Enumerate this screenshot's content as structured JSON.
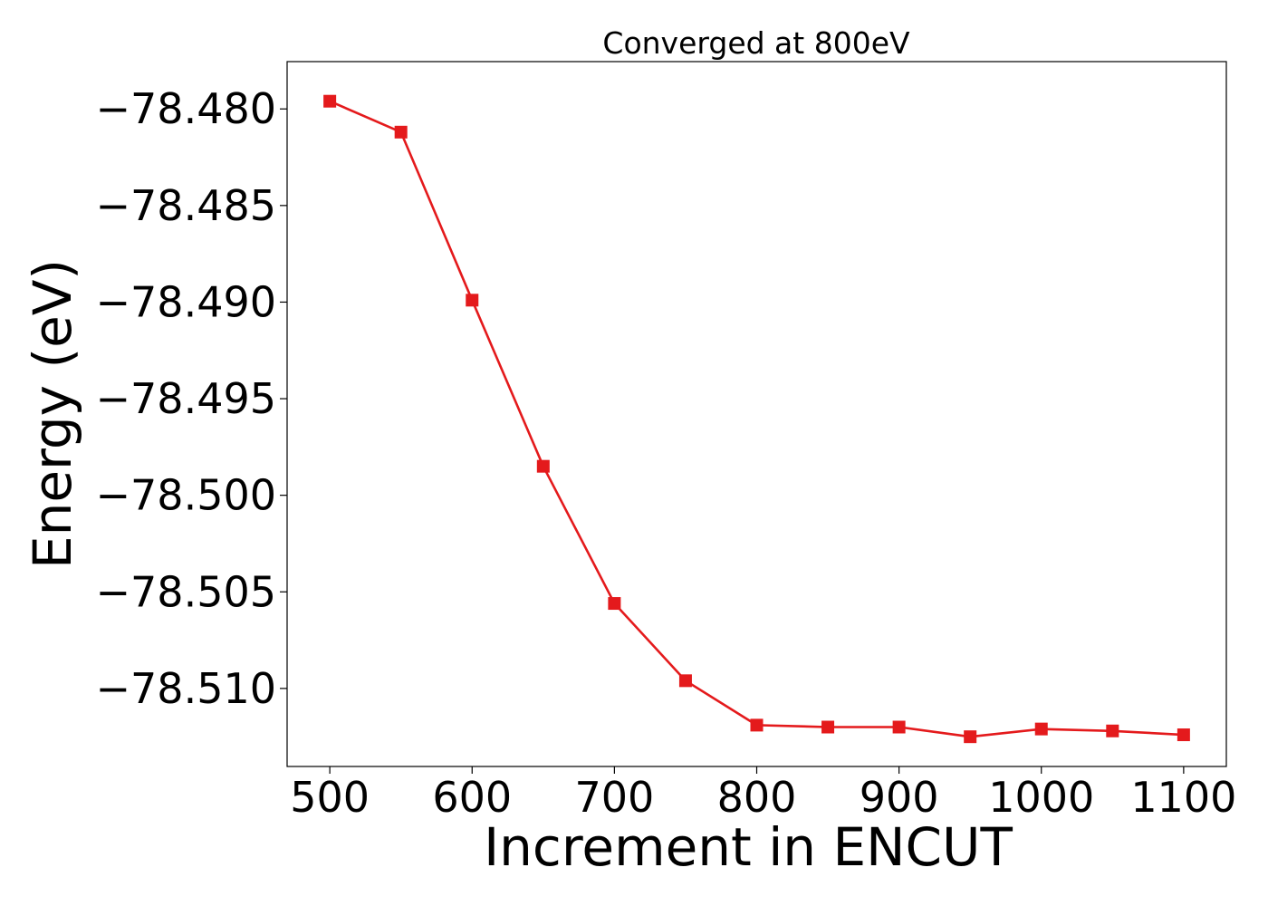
{
  "chart_data": {
    "type": "line",
    "title": "Converged at 800eV",
    "xlabel": "Increment in ENCUT",
    "ylabel": "Energy (eV)",
    "x": [
      500,
      550,
      600,
      650,
      700,
      750,
      800,
      850,
      900,
      950,
      1000,
      1050,
      1100
    ],
    "series": [
      {
        "values": [
          -78.4796,
          -78.4812,
          -78.4899,
          -78.4985,
          -78.5056,
          -78.5096,
          -78.5119,
          -78.512,
          -78.512,
          -78.5125,
          -78.5121,
          -78.5122,
          -78.5124
        ],
        "color": "#e41a1c",
        "marker": "square"
      }
    ],
    "xlim": [
      470,
      1130
    ],
    "ylim": [
      -78.51404,
      -78.47755
    ],
    "xticks": [
      500,
      600,
      700,
      800,
      900,
      1000,
      1100
    ],
    "xtick_labels": [
      "500",
      "600",
      "700",
      "800",
      "900",
      "1000",
      "1100"
    ],
    "yticks": [
      -78.48,
      -78.485,
      -78.49,
      -78.495,
      -78.5,
      -78.505,
      -78.51
    ],
    "ytick_labels": [
      "−78.480",
      "−78.485",
      "−78.490",
      "−78.495",
      "−78.500",
      "−78.505",
      "−78.510"
    ],
    "grid": false,
    "legend": false
  }
}
